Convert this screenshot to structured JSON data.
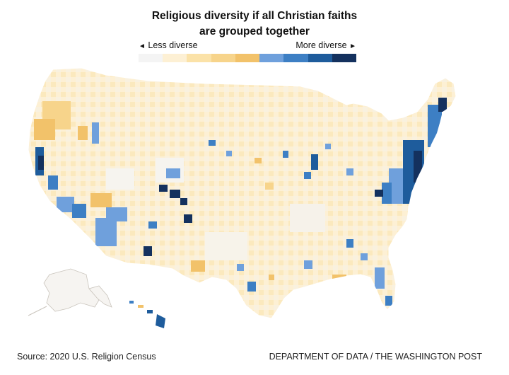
{
  "title_line1": "Religious diversity if all Christian faiths",
  "title_line2": "are grouped together",
  "legend": {
    "less_label": "Less diverse",
    "more_label": "More diverse",
    "less_arrow": "◄",
    "more_arrow": "►",
    "colors": [
      "#f4f4f4",
      "#fdf0d4",
      "#fbe2a8",
      "#f7d48b",
      "#f2c26a",
      "#6fa0dc",
      "#3d7fc4",
      "#1e5c9c",
      "#14315e"
    ]
  },
  "source": "Source: 2020 U.S. Religion Census",
  "credit": "DEPARTMENT OF DATA / THE WASHINGTON POST"
}
